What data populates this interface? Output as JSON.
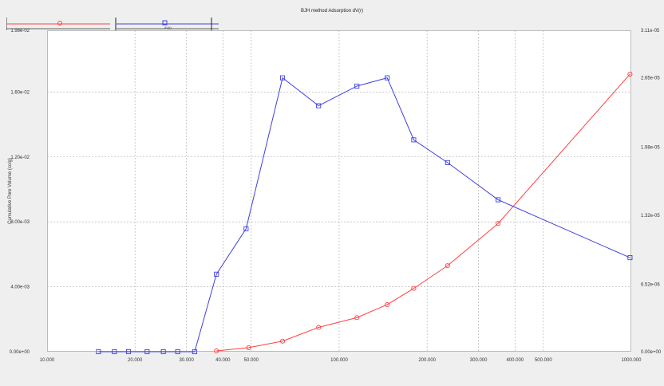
{
  "chart_data": {
    "type": "line",
    "title": "BJH method Adsorption  dV(r)",
    "ylabel": "Cumulative  Pore  Volume (cc/g)",
    "x_scale": "log",
    "xlim": [
      10,
      1000
    ],
    "ylim_left": [
      0,
      0.0198
    ],
    "ylim_right": [
      0,
      3.11e-05
    ],
    "x_ticks": [
      "10.000",
      "20.000",
      "30.000",
      "40.000",
      "50.000",
      "100.000",
      "200.000",
      "300.000",
      "400.000",
      "500.000",
      "1000.000"
    ],
    "x_tick_values": [
      10,
      20,
      30,
      40,
      50,
      100,
      200,
      300,
      400,
      500,
      1000
    ],
    "y_ticks_left": [
      "0.00e+00",
      "4.00e-03",
      "8.00e-03",
      "1.20e-02",
      "1.60e-02",
      "1.98e-02"
    ],
    "y_tick_values_left": [
      0,
      0.004,
      0.008,
      0.012,
      0.016,
      0.0198
    ],
    "y_ticks_right": [
      "0.00e+00",
      "6.52e-06",
      "1.32e-05",
      "1.98e-05",
      "2.65e-05",
      "3.11e-05"
    ],
    "y_tick_values_right": [
      0,
      6.52e-06,
      1.32e-05,
      1.98e-05,
      2.65e-05,
      3.11e-05
    ],
    "grid": true,
    "series": [
      {
        "name": "",
        "axis": "left",
        "color": "#ff4040",
        "marker": "circle",
        "x": [
          38,
          49,
          64,
          85,
          115,
          146,
          180,
          235,
          350,
          990
        ],
        "y": [
          5e-05,
          0.00025,
          0.00065,
          0.0015,
          0.0021,
          0.0029,
          0.0039,
          0.0053,
          0.0079,
          0.0171
        ]
      },
      {
        "name": "dV(r)",
        "axis": "right",
        "color": "#4040e0",
        "marker": "square",
        "x": [
          15,
          17,
          19,
          22,
          25,
          28,
          32,
          38,
          48,
          64,
          85,
          115,
          146,
          180,
          235,
          350,
          990
        ],
        "y": [
          0,
          0,
          0,
          0,
          0,
          0,
          0,
          7.5e-06,
          1.19e-05,
          2.65e-05,
          2.38e-05,
          2.57e-05,
          2.65e-05,
          2.05e-05,
          1.83e-05,
          1.47e-05,
          9.1e-06
        ]
      }
    ]
  }
}
